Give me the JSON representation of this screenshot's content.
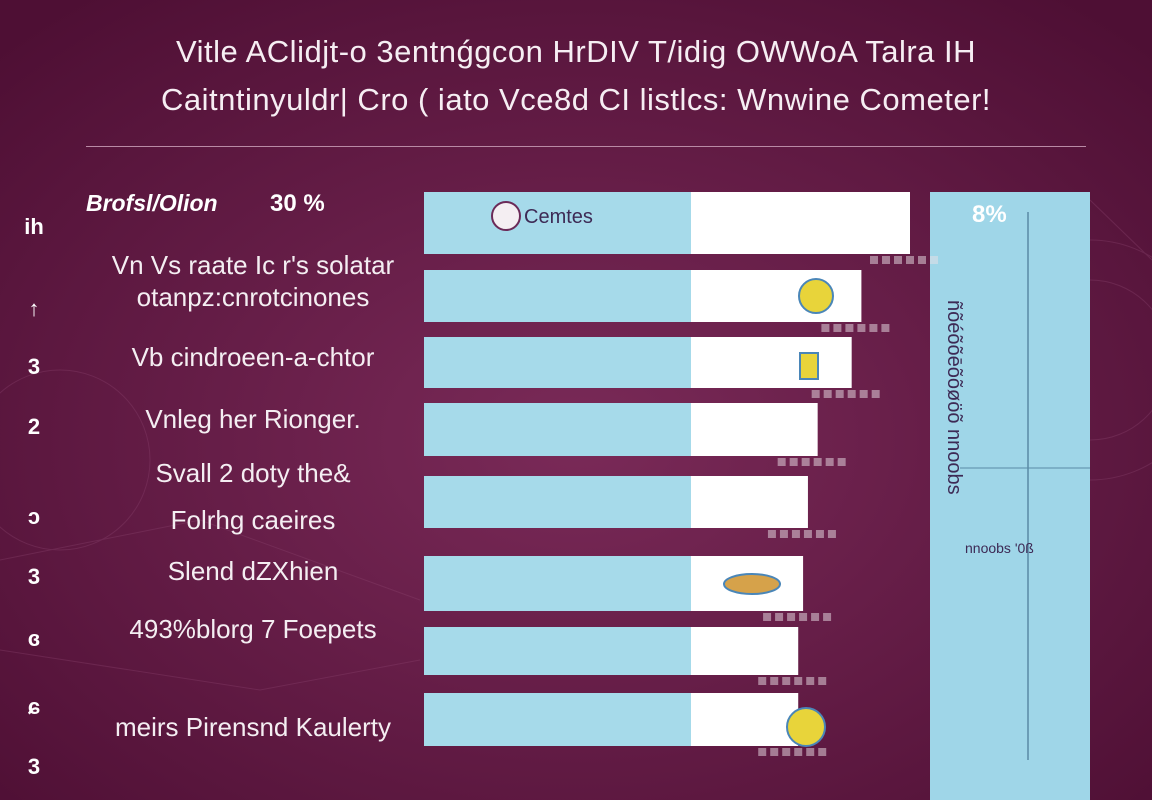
{
  "title": {
    "line1": "Vitle AClidjt-o 3entnǵgcon HrDIV T/idig OWWoA Talra IH",
    "line2": "Caitntinyuldr| Cro ( iato Vce8d CI listlcs: Wnwine Cometer!"
  },
  "header": {
    "label": "Brofsl/Olion",
    "value": "30 %",
    "badge_text": "Cemtes",
    "right_value": "8%"
  },
  "side_panel": {
    "vertical_text": "ñõéõõēõõøöõ nnoobs",
    "caption": "nnoobs '0ß"
  },
  "colors": {
    "background": "#5e1540",
    "bar_light": "#a6daea",
    "bar_white": "#ffffff",
    "panel": "#9fd6e8",
    "marker_yellow": "#e8d43a",
    "marker_blue": "#4a86b8"
  },
  "chart_data": {
    "type": "bar",
    "orientation": "horizontal",
    "categories": [
      "Vn Vs raate Ic r's solatar",
      "otanpz:cnrotcinones",
      "Vb cindroeen-a-chtor",
      "Vnleg her Rionger.",
      "Svall 2 doty the&",
      "Folrhg caeires",
      "Slend dZXhien",
      "493%blorg 7 Foepets",
      "meirs Pirensnd Kaulerty"
    ],
    "row_numbers": [
      "ih",
      "↑",
      "3",
      "2",
      "ɔ",
      "3",
      "ɞ",
      "ɕ",
      "3"
    ],
    "series": [
      {
        "values": [
          100,
          90,
          88,
          81,
          79,
          78,
          77,
          77,
          80
        ]
      }
    ],
    "xlim": [
      0,
      100
    ],
    "grid": false,
    "legend": "none"
  }
}
